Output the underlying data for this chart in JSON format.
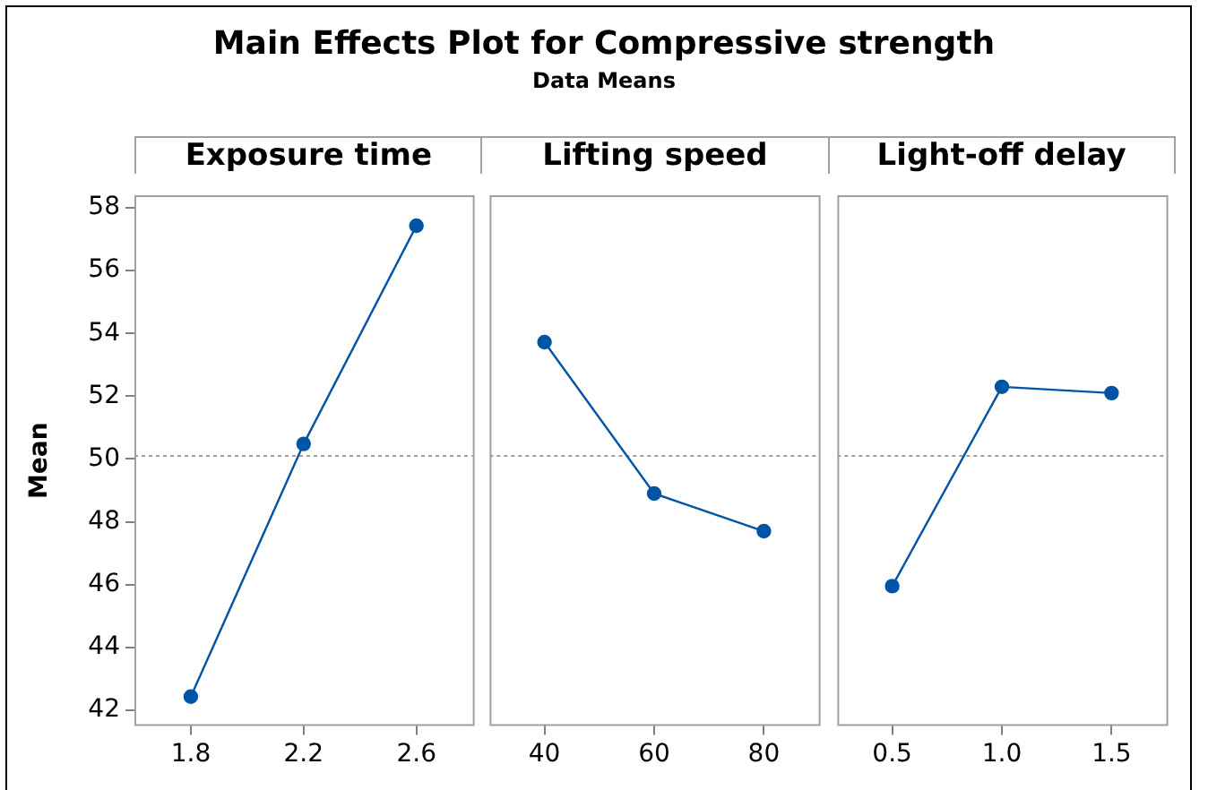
{
  "chart_data": [
    {
      "type": "line",
      "xlabel": "Exposure time",
      "ylabel": "Mean",
      "categories": [
        "1.8",
        "2.2",
        "2.6"
      ],
      "values": [
        42.43,
        50.48,
        57.43
      ],
      "color": "#0054a6",
      "marker": "circle",
      "ylim": [
        41.5,
        58.4
      ],
      "yticks": [
        42,
        44,
        46,
        48,
        50,
        52,
        54,
        56,
        58
      ],
      "ref_lines": [
        {
          "axis": "y",
          "value": 50.1,
          "color": "#a0a0a0",
          "line_style": "dotted"
        }
      ]
    },
    {
      "type": "line",
      "title": "Main Effects Plot for Compressive strength",
      "subtitle": "Data Means",
      "xlabel": "Lifting speed",
      "categories": [
        "40",
        "60",
        "80"
      ],
      "values": [
        53.72,
        48.9,
        47.7
      ],
      "color": "#0054a6",
      "marker": "circle",
      "ylim": [
        41.5,
        58.4
      ],
      "yticks": [
        42,
        44,
        46,
        48,
        50,
        52,
        54,
        56,
        58
      ],
      "tick_labels": "x",
      "ref_lines": [
        {
          "axis": "y",
          "value": 50.1,
          "color": "#a0a0a0",
          "line_style": "dotted"
        }
      ]
    },
    {
      "type": "line",
      "xlabel": "Light-off delay",
      "categories": [
        "0.5",
        "1.0",
        "1.5"
      ],
      "values": [
        45.95,
        52.3,
        52.1
      ],
      "color": "#0054a6",
      "marker": "circle",
      "ylim": [
        41.5,
        58.4
      ],
      "yticks": [
        42,
        44,
        46,
        48,
        50,
        52,
        54,
        56,
        58
      ],
      "tick_labels": "x",
      "ref_lines": [
        {
          "axis": "y",
          "value": 50.1,
          "color": "#a0a0a0",
          "line_style": "dotted"
        }
      ]
    }
  ]
}
